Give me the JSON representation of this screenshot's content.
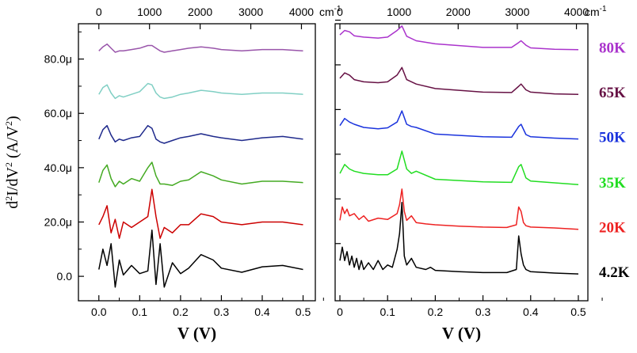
{
  "chart_data": [
    {
      "type": "line",
      "panel": "left",
      "ylabel": "d²I/dV² (A/V²)",
      "xlabel": "V (V)",
      "xlim": [
        -0.05,
        0.53
      ],
      "ylim": [
        -9,
        93
      ],
      "x_ticks": [
        "0.0",
        "0.1",
        "0.2",
        "0.3",
        "0.4",
        "0.5"
      ],
      "y_ticks": [
        "0.0",
        "20.0μ",
        "40.0μ",
        "60.0μ",
        "80.0μ"
      ],
      "top_axis": {
        "unit": "cm⁻¹",
        "ticks": [
          "0",
          "1000",
          "2000",
          "3000",
          "4000"
        ]
      },
      "series": [
        {
          "name": "4.2K",
          "color": "#000000",
          "offset": 2.5,
          "x": [
            0.0,
            0.01,
            0.02,
            0.03,
            0.04,
            0.05,
            0.06,
            0.08,
            0.1,
            0.12,
            0.13,
            0.14,
            0.15,
            0.16,
            0.18,
            0.2,
            0.22,
            0.25,
            0.28,
            0.3,
            0.35,
            0.4,
            0.45,
            0.5
          ],
          "values": [
            2.5,
            10.0,
            4.0,
            12.0,
            -4.0,
            6.0,
            0.5,
            4.0,
            1.0,
            2.0,
            17.0,
            -3.0,
            12.0,
            -4.0,
            5.0,
            1.0,
            3.0,
            8.0,
            6.0,
            3.0,
            1.5,
            3.5,
            4.0,
            2.5
          ]
        },
        {
          "name": "20K",
          "color": "#cc0000",
          "offset": 19.0,
          "x": [
            0.0,
            0.01,
            0.02,
            0.03,
            0.04,
            0.05,
            0.06,
            0.08,
            0.1,
            0.12,
            0.13,
            0.14,
            0.15,
            0.16,
            0.18,
            0.2,
            0.22,
            0.25,
            0.28,
            0.3,
            0.35,
            0.4,
            0.45,
            0.5
          ],
          "values": [
            19.0,
            22.0,
            26.0,
            16.0,
            21.0,
            14.0,
            20.0,
            18.0,
            20.0,
            22.0,
            32.0,
            22.0,
            14.0,
            18.0,
            16.0,
            19.0,
            19.0,
            23.0,
            22.0,
            20.0,
            19.0,
            20.0,
            20.0,
            19.0
          ]
        },
        {
          "name": "35K",
          "color": "#44aa22",
          "offset": 34.5,
          "x": [
            0.0,
            0.01,
            0.02,
            0.03,
            0.04,
            0.05,
            0.06,
            0.08,
            0.1,
            0.12,
            0.13,
            0.14,
            0.15,
            0.16,
            0.18,
            0.2,
            0.22,
            0.25,
            0.28,
            0.3,
            0.35,
            0.4,
            0.45,
            0.5
          ],
          "values": [
            34.5,
            39.0,
            41.0,
            36.0,
            33.0,
            35.0,
            34.0,
            36.0,
            35.0,
            40.0,
            42.0,
            37.0,
            34.0,
            34.0,
            33.5,
            35.0,
            35.5,
            38.5,
            37.0,
            35.5,
            34.0,
            35.0,
            35.0,
            34.5
          ]
        },
        {
          "name": "50K",
          "color": "#1f2a8c",
          "offset": 50.5,
          "x": [
            0.0,
            0.01,
            0.02,
            0.03,
            0.04,
            0.05,
            0.06,
            0.08,
            0.1,
            0.12,
            0.13,
            0.14,
            0.15,
            0.16,
            0.18,
            0.2,
            0.22,
            0.25,
            0.28,
            0.3,
            0.35,
            0.4,
            0.45,
            0.5
          ],
          "values": [
            50.5,
            54.0,
            55.5,
            52.0,
            49.5,
            50.5,
            50.0,
            51.0,
            51.5,
            55.5,
            54.5,
            50.5,
            49.5,
            49.0,
            50.0,
            51.0,
            51.5,
            52.5,
            51.5,
            51.0,
            50.0,
            51.0,
            51.5,
            50.5
          ]
        },
        {
          "name": "65K",
          "color": "#80cfc4",
          "offset": 67.0,
          "x": [
            0.0,
            0.01,
            0.02,
            0.03,
            0.04,
            0.05,
            0.06,
            0.08,
            0.1,
            0.12,
            0.13,
            0.14,
            0.15,
            0.16,
            0.18,
            0.2,
            0.22,
            0.25,
            0.28,
            0.3,
            0.35,
            0.4,
            0.45,
            0.5
          ],
          "values": [
            67.0,
            69.5,
            70.5,
            67.5,
            65.5,
            66.5,
            66.0,
            67.0,
            68.0,
            71.0,
            70.5,
            67.5,
            66.0,
            65.5,
            66.0,
            67.0,
            67.5,
            68.5,
            68.0,
            67.5,
            67.0,
            67.5,
            67.5,
            67.0
          ]
        },
        {
          "name": "80K",
          "color": "#9955aa",
          "offset": 83.0,
          "x": [
            0.0,
            0.01,
            0.02,
            0.03,
            0.04,
            0.05,
            0.06,
            0.08,
            0.1,
            0.12,
            0.13,
            0.14,
            0.15,
            0.16,
            0.18,
            0.2,
            0.22,
            0.25,
            0.28,
            0.3,
            0.35,
            0.4,
            0.45,
            0.5
          ],
          "values": [
            83.0,
            84.5,
            85.5,
            84.0,
            82.5,
            83.0,
            83.0,
            83.5,
            84.0,
            85.0,
            85.0,
            84.0,
            83.0,
            82.5,
            83.0,
            83.5,
            84.0,
            84.5,
            84.0,
            83.5,
            83.0,
            83.5,
            83.5,
            83.0
          ]
        }
      ]
    },
    {
      "type": "line",
      "panel": "right",
      "xlabel": "V (V)",
      "xlim": [
        -0.01,
        0.52
      ],
      "ylim": [
        -0.6,
        5.6
      ],
      "x_ticks": [
        "0",
        "0.1",
        "0.2",
        "0.3",
        "0.4",
        "0.5"
      ],
      "top_axis": {
        "unit": "cm⁻¹",
        "ticks": [
          "0",
          "1000",
          "2000",
          "3000",
          "4000"
        ]
      },
      "series": [
        {
          "name": "4.2K",
          "color": "#000000",
          "offset": 0.0,
          "x": [
            0.0,
            0.005,
            0.01,
            0.015,
            0.02,
            0.025,
            0.03,
            0.035,
            0.04,
            0.045,
            0.05,
            0.06,
            0.07,
            0.08,
            0.09,
            0.1,
            0.11,
            0.12,
            0.125,
            0.13,
            0.135,
            0.14,
            0.15,
            0.16,
            0.18,
            0.19,
            0.2,
            0.25,
            0.3,
            0.35,
            0.37,
            0.375,
            0.38,
            0.385,
            0.39,
            0.4,
            0.45,
            0.5
          ],
          "values": [
            0.3,
            0.6,
            0.3,
            0.5,
            0.2,
            0.4,
            0.15,
            0.35,
            0.1,
            0.3,
            0.1,
            0.25,
            0.1,
            0.3,
            0.1,
            0.2,
            0.15,
            0.55,
            0.9,
            1.6,
            0.4,
            0.2,
            0.35,
            0.15,
            0.1,
            0.15,
            0.08,
            0.05,
            0.03,
            0.03,
            0.1,
            0.85,
            0.45,
            0.2,
            0.1,
            0.05,
            0.02,
            0.0
          ]
        },
        {
          "name": "20K",
          "color": "#ee2222",
          "offset": 1.0,
          "x": [
            0.0,
            0.005,
            0.01,
            0.015,
            0.02,
            0.03,
            0.04,
            0.05,
            0.06,
            0.08,
            0.1,
            0.12,
            0.125,
            0.13,
            0.135,
            0.14,
            0.15,
            0.16,
            0.18,
            0.2,
            0.25,
            0.3,
            0.35,
            0.37,
            0.375,
            0.38,
            0.385,
            0.39,
            0.4,
            0.45,
            0.5
          ],
          "values": [
            1.2,
            1.5,
            1.35,
            1.45,
            1.3,
            1.35,
            1.22,
            1.3,
            1.18,
            1.25,
            1.22,
            1.35,
            1.55,
            1.9,
            1.4,
            1.2,
            1.3,
            1.15,
            1.12,
            1.1,
            1.07,
            1.05,
            1.04,
            1.1,
            1.5,
            1.4,
            1.15,
            1.08,
            1.05,
            1.03,
            1.0
          ]
        },
        {
          "name": "35K",
          "color": "#22dd22",
          "offset": 2.0,
          "x": [
            0.0,
            0.01,
            0.02,
            0.03,
            0.05,
            0.08,
            0.1,
            0.12,
            0.13,
            0.14,
            0.15,
            0.16,
            0.2,
            0.3,
            0.36,
            0.375,
            0.38,
            0.39,
            0.4,
            0.45,
            0.5
          ],
          "values": [
            2.25,
            2.45,
            2.35,
            2.3,
            2.25,
            2.22,
            2.22,
            2.35,
            2.75,
            2.35,
            2.25,
            2.3,
            2.12,
            2.06,
            2.05,
            2.4,
            2.45,
            2.15,
            2.08,
            2.04,
            2.0
          ]
        },
        {
          "name": "50K",
          "color": "#1a33dd",
          "offset": 3.0,
          "x": [
            0.0,
            0.01,
            0.02,
            0.03,
            0.05,
            0.08,
            0.1,
            0.12,
            0.13,
            0.14,
            0.15,
            0.16,
            0.2,
            0.3,
            0.36,
            0.375,
            0.38,
            0.39,
            0.4,
            0.45,
            0.5
          ],
          "values": [
            3.32,
            3.48,
            3.4,
            3.35,
            3.28,
            3.25,
            3.27,
            3.4,
            3.65,
            3.35,
            3.3,
            3.28,
            3.13,
            3.07,
            3.06,
            3.3,
            3.35,
            3.12,
            3.07,
            3.04,
            3.02
          ]
        },
        {
          "name": "65K",
          "color": "#661144",
          "offset": 4.0,
          "x": [
            0.0,
            0.01,
            0.02,
            0.03,
            0.05,
            0.08,
            0.1,
            0.12,
            0.13,
            0.14,
            0.16,
            0.2,
            0.3,
            0.36,
            0.375,
            0.38,
            0.39,
            0.4,
            0.45,
            0.5
          ],
          "values": [
            4.38,
            4.5,
            4.45,
            4.35,
            4.3,
            4.28,
            4.3,
            4.45,
            4.62,
            4.35,
            4.25,
            4.15,
            4.07,
            4.06,
            4.2,
            4.25,
            4.12,
            4.07,
            4.03,
            4.02
          ]
        },
        {
          "name": "80K",
          "color": "#aa33cc",
          "offset": 5.0,
          "x": [
            0.0,
            0.01,
            0.02,
            0.03,
            0.05,
            0.08,
            0.1,
            0.12,
            0.13,
            0.14,
            0.16,
            0.2,
            0.3,
            0.36,
            0.375,
            0.38,
            0.39,
            0.4,
            0.45,
            0.5
          ],
          "values": [
            5.35,
            5.45,
            5.42,
            5.33,
            5.3,
            5.28,
            5.3,
            5.45,
            5.55,
            5.32,
            5.22,
            5.15,
            5.07,
            5.07,
            5.18,
            5.22,
            5.12,
            5.06,
            5.03,
            5.02
          ]
        }
      ]
    }
  ]
}
